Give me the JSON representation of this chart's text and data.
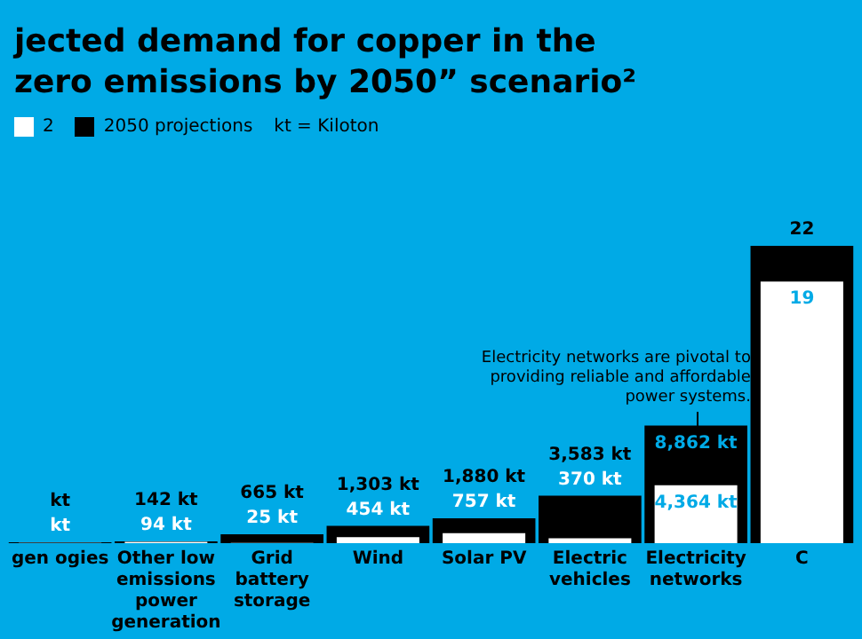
{
  "chart_data": {
    "type": "bar",
    "title": "jected demand for copper in the\nzero emissions by 2050” scenario²",
    "categories": [
      "gen ogies",
      "Other low emissions power generation",
      "Grid battery storage",
      "Wind",
      "Solar PV",
      "Electric vehicles",
      "Electricity networks",
      "C"
    ],
    "series": [
      {
        "name": "2",
        "color": "#ffffff",
        "values": [
          20,
          94,
          25,
          454,
          757,
          370,
          4364,
          19700
        ],
        "value_labels": [
          "kt",
          "94 kt",
          "25 kt",
          "454 kt",
          "757 kt",
          "370 kt",
          "4,364 kt",
          null
        ]
      },
      {
        "name": "2050 projections",
        "color": "#000000",
        "values": [
          60,
          142,
          665,
          1303,
          1880,
          3583,
          8862,
          22400
        ],
        "value_labels": [
          "kt",
          "142 kt",
          "665 kt",
          "1,303 kt",
          "1,880 kt",
          "3,583 kt",
          "8,862 kt",
          null
        ]
      }
    ],
    "legend": "top left",
    "annotations": [
      "kt = Kiloton",
      {
        "text": "Electricity networks are pivotal to providing reliable and affordable power systems.",
        "x": "Electricity networks",
        "y": 8862
      },
      {
        "text": "22",
        "x": "C",
        "y": 22400
      },
      {
        "text": "19",
        "x": "C",
        "y": 19700
      }
    ]
  }
}
